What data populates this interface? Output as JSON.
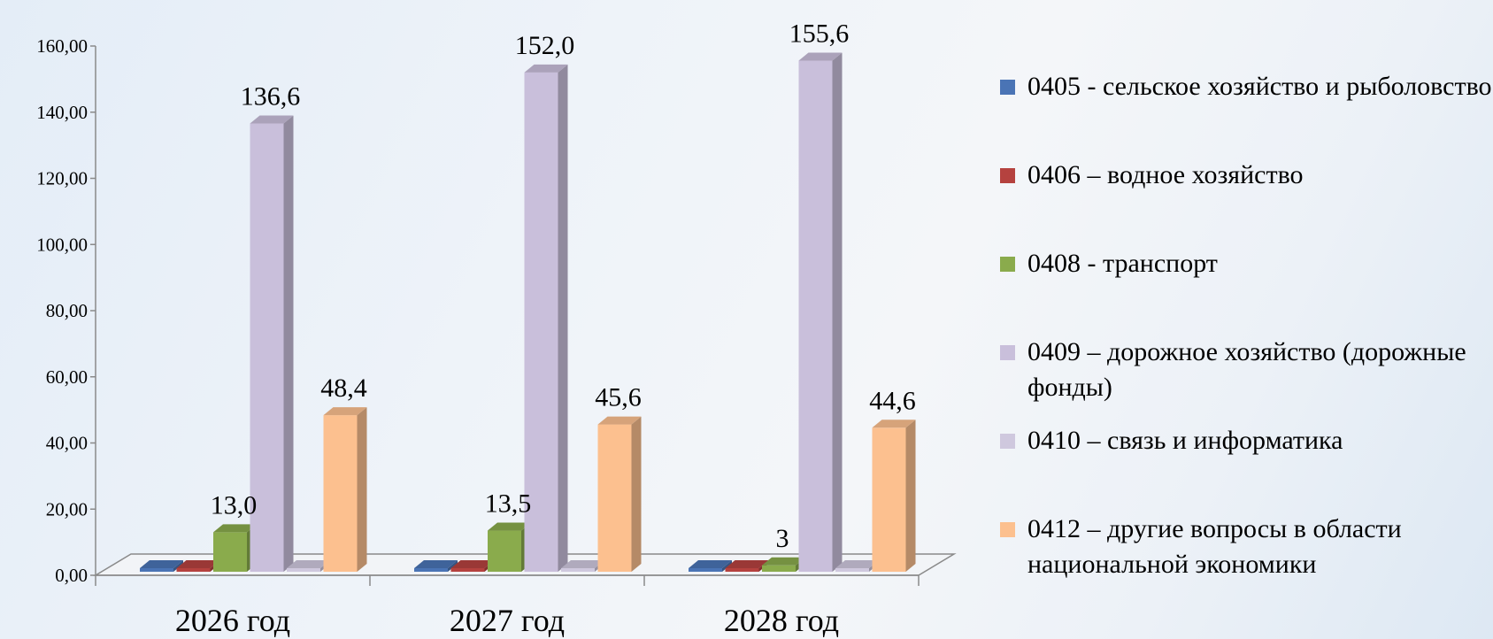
{
  "chart_data": {
    "type": "bar",
    "categories": [
      "2026 год",
      "2027 год",
      "2028 год"
    ],
    "y_ticks": [
      "0,00",
      "20,00",
      "40,00",
      "60,00",
      "80,00",
      "100,00",
      "120,00",
      "140,00",
      "160,00"
    ],
    "ylim": [
      0,
      160
    ],
    "grid": false,
    "legend_position": "right",
    "series": [
      {
        "name": "0405 - сельское хозяйство и рыболовство",
        "color": "#4a74b5",
        "values": [
          0,
          0,
          0
        ],
        "labels": [
          "",
          "",
          ""
        ]
      },
      {
        "name": "0406 – водное хозяйство",
        "color": "#b5423f",
        "values": [
          0,
          0,
          0
        ],
        "labels": [
          "",
          "",
          ""
        ]
      },
      {
        "name": "0408 - транспорт",
        "color": "#8aab4c",
        "values": [
          13.0,
          13.5,
          3
        ],
        "labels": [
          "13,0",
          "13,5",
          "3"
        ]
      },
      {
        "name": "0409 – дорожное хозяйство (дорожные фонды)",
        "color": "#c9bfdb",
        "values": [
          136.6,
          152.0,
          155.6
        ],
        "labels": [
          "136,6",
          "152,0",
          "155,6"
        ]
      },
      {
        "name": "0410 – связь и информатика",
        "color": "#cfc8de",
        "values": [
          0,
          0,
          0
        ],
        "labels": [
          "",
          "",
          ""
        ]
      },
      {
        "name": "0412 – другие вопросы в области национальной экономики",
        "color": "#fcc08f",
        "values": [
          48.4,
          45.6,
          44.6
        ],
        "labels": [
          "48,4",
          "45,6",
          "44,6"
        ]
      }
    ]
  }
}
